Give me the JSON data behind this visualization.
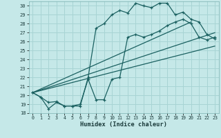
{
  "xlabel": "Humidex (Indice chaleur)",
  "bg_color": "#c5e8e8",
  "grid_color": "#a8d4d4",
  "line_color": "#1a6060",
  "xlim": [
    -0.5,
    23.5
  ],
  "ylim": [
    18,
    30.5
  ],
  "yticks": [
    18,
    19,
    20,
    21,
    22,
    23,
    24,
    25,
    26,
    27,
    28,
    29,
    30
  ],
  "xticks": [
    0,
    1,
    2,
    3,
    4,
    5,
    6,
    7,
    8,
    9,
    10,
    11,
    12,
    13,
    14,
    15,
    16,
    17,
    18,
    19,
    20,
    21,
    22,
    23
  ],
  "series1_x": [
    0,
    1,
    2,
    3,
    4,
    5,
    6,
    7,
    8,
    9,
    10,
    11,
    12,
    13,
    14,
    15,
    16,
    17,
    18,
    19,
    20,
    21,
    22,
    23
  ],
  "series1_y": [
    20.3,
    19.8,
    18.5,
    19.2,
    18.8,
    18.8,
    18.8,
    22.0,
    27.5,
    28.0,
    29.0,
    29.5,
    29.2,
    30.3,
    30.0,
    29.8,
    30.3,
    30.3,
    29.0,
    29.3,
    28.5,
    28.2,
    26.8,
    26.3
  ],
  "series2_x": [
    0,
    1,
    2,
    3,
    4,
    5,
    6,
    7,
    8,
    9,
    10,
    11,
    12,
    13,
    14,
    15,
    16,
    17,
    18,
    19,
    20,
    21,
    22,
    23
  ],
  "series2_y": [
    20.3,
    19.8,
    19.2,
    19.3,
    18.8,
    18.8,
    19.0,
    21.8,
    19.5,
    19.5,
    21.8,
    22.0,
    26.5,
    26.8,
    26.5,
    26.8,
    27.2,
    27.8,
    28.2,
    28.5,
    28.0,
    26.5,
    26.2,
    26.5
  ],
  "line1_x": [
    0,
    20
  ],
  "line1_y": [
    20.3,
    28.2
  ],
  "line2_x": [
    0,
    23
  ],
  "line2_y": [
    20.3,
    27.0
  ],
  "line3_x": [
    0,
    23
  ],
  "line3_y": [
    20.3,
    25.5
  ]
}
